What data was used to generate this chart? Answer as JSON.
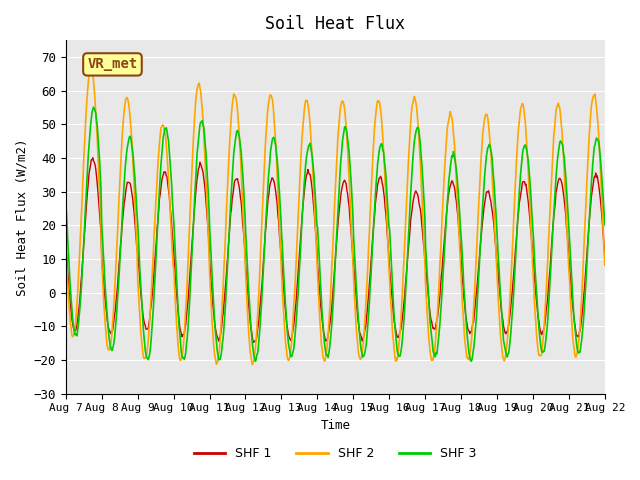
{
  "title": "Soil Heat Flux",
  "ylabel": "Soil Heat Flux (W/m2)",
  "xlabel": "Time",
  "ylim": [
    -30,
    75
  ],
  "yticks": [
    -30,
    -20,
    -10,
    0,
    10,
    20,
    30,
    40,
    50,
    60,
    70
  ],
  "xlim_days": [
    0,
    15
  ],
  "x_tick_labels": [
    "Aug 7",
    "Aug 8",
    "Aug 9",
    "Aug 10",
    "Aug 11",
    "Aug 12",
    "Aug 13",
    "Aug 14",
    "Aug 15",
    "Aug 16",
    "Aug 17",
    "Aug 18",
    "Aug 19",
    "Aug 20",
    "Aug 21",
    "Aug 22"
  ],
  "shf1_color": "#CC0000",
  "shf2_color": "#FFA500",
  "shf3_color": "#00CC00",
  "bg_color": "#E8E8E8",
  "label_box_color": "#FFFF99",
  "label_box_edge": "#8B4513",
  "label_text": "VR_met",
  "legend_labels": [
    "SHF 1",
    "SHF 2",
    "SHF 3"
  ],
  "font_family": "monospace",
  "n_days": 15,
  "period_hours": 24,
  "pts_per_day": 48,
  "shf1_peaks": [
    40,
    33,
    36,
    38,
    34,
    34,
    36,
    33,
    34,
    30,
    33,
    30,
    33,
    34,
    35
  ],
  "shf2_peaks": [
    67,
    58,
    50,
    62,
    59,
    59,
    57,
    57,
    57,
    58,
    53,
    53,
    56,
    56,
    59
  ],
  "shf3_peaks": [
    55,
    46,
    49,
    51,
    48,
    46,
    44,
    49,
    44,
    49,
    41,
    44,
    44,
    45,
    46
  ],
  "shf1_troughs": [
    -11,
    -12,
    -11,
    -13,
    -14,
    -15,
    -14,
    -14,
    -14,
    -13,
    -11,
    -12,
    -12,
    -12,
    -13
  ],
  "shf2_troughs": [
    -13,
    -17,
    -20,
    -20,
    -21,
    -21,
    -20,
    -20,
    -20,
    -20,
    -20,
    -20,
    -20,
    -19,
    -19
  ],
  "shf3_troughs": [
    -13,
    -17,
    -20,
    -20,
    -20,
    -20,
    -19,
    -19,
    -19,
    -19,
    -19,
    -20,
    -19,
    -18,
    -18
  ]
}
